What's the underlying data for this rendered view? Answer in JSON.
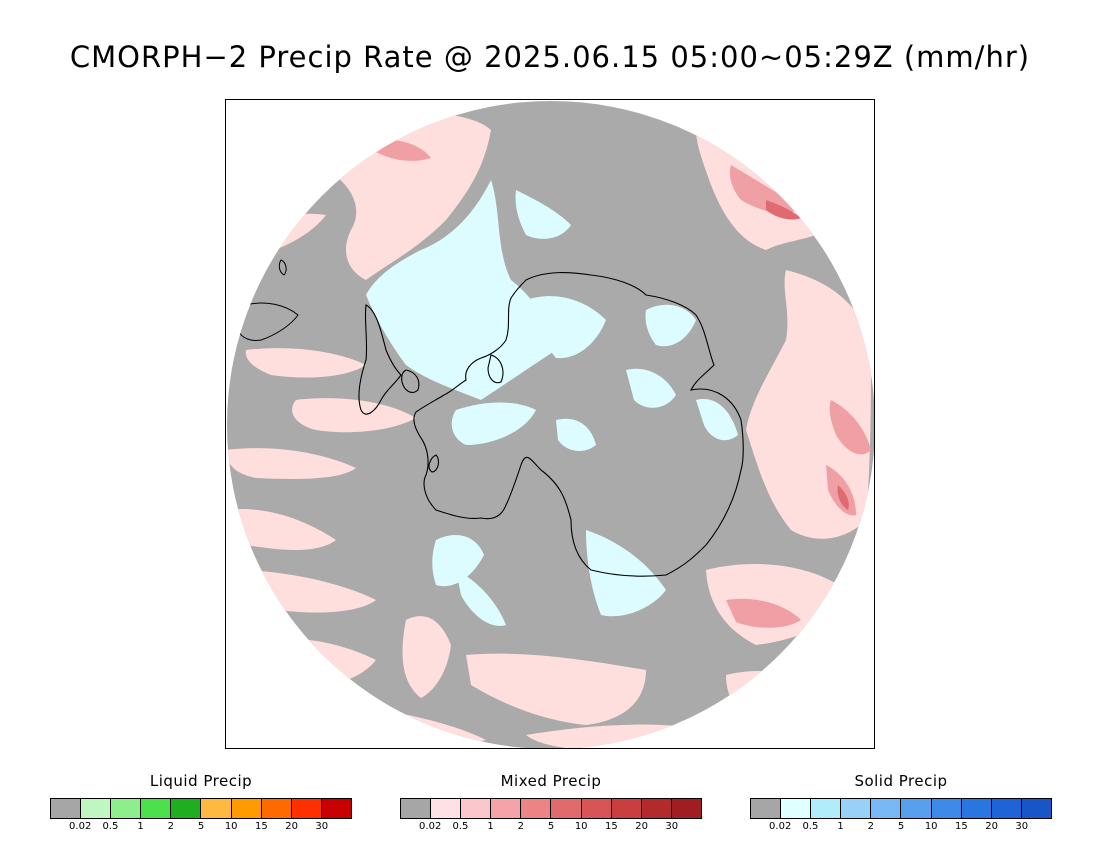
{
  "title": "CMORPH−2 Precip Rate @ 2025.06.15 05:00~05:29Z (mm/hr)",
  "map": {
    "colors": {
      "no_precip": "#aaaaaa",
      "mixed_light": "#ffdede",
      "mixed_mid": "#f0a0a4",
      "mixed_high": "#e06a72",
      "solid_light": "#ddfcff",
      "land_outline": "#000000"
    }
  },
  "legends": [
    {
      "title": "Liquid Precip",
      "colors": [
        "#a6a6a6",
        "#c0f7c0",
        "#8cef8c",
        "#4de04d",
        "#1fae1f",
        "#ffb940",
        "#ff9a00",
        "#ff6a00",
        "#ff3000",
        "#c80000"
      ],
      "ticks": [
        "0.02",
        "0.5",
        "1",
        "2",
        "5",
        "10",
        "15",
        "20",
        "30"
      ]
    },
    {
      "title": "Mixed Precip",
      "colors": [
        "#a6a6a6",
        "#ffe0e4",
        "#fbc7cc",
        "#f4a3a9",
        "#ec8486",
        "#e06a6c",
        "#d85456",
        "#ca3e40",
        "#b22a2c",
        "#a01e22"
      ],
      "ticks": [
        "0.02",
        "0.5",
        "1",
        "2",
        "5",
        "10",
        "15",
        "20",
        "30"
      ]
    },
    {
      "title": "Solid Precip",
      "colors": [
        "#a6a6a6",
        "#e0ffff",
        "#b0ecfa",
        "#98d0f8",
        "#78b8f4",
        "#58a0ee",
        "#3e8ae8",
        "#2a76e0",
        "#1e64d8",
        "#1656c8"
      ],
      "ticks": [
        "0.02",
        "0.5",
        "1",
        "2",
        "5",
        "10",
        "15",
        "20",
        "30"
      ]
    }
  ]
}
